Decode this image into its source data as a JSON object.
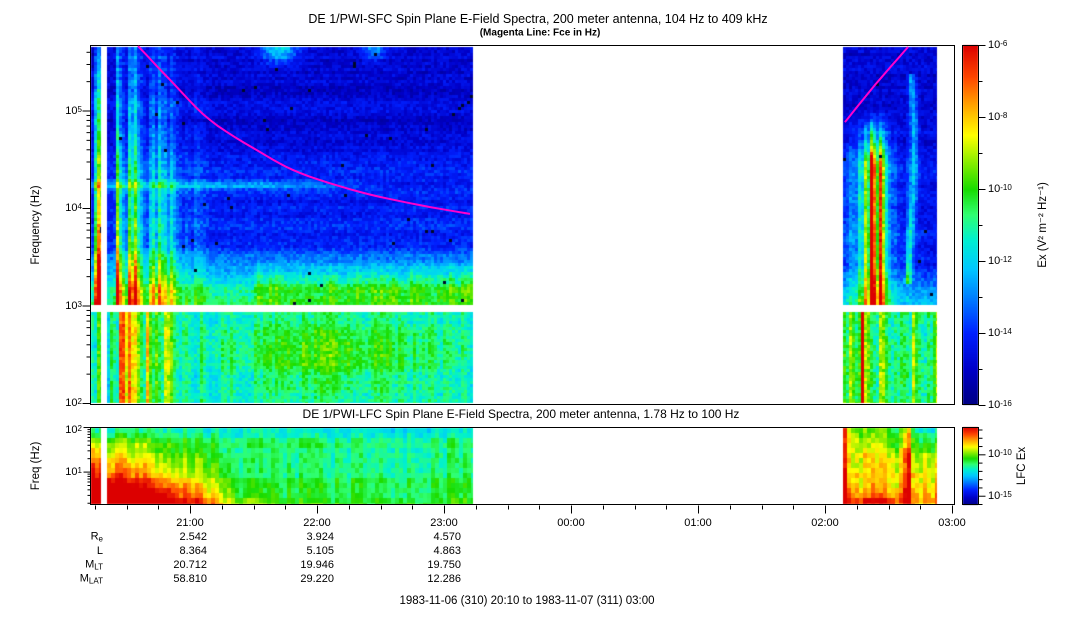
{
  "header": {
    "title": "DE 1/PWI-SFC  Spin Plane E-Field Spectra, 200 meter antenna, 104 Hz to 409 kHz",
    "subtitle": "(Magenta Line: Fce in Hz)"
  },
  "sfc_plot": {
    "ylabel": "Frequency (Hz)",
    "ytick_exps": [
      "2",
      "3",
      "4",
      "5"
    ],
    "freq_range_hz": [
      100,
      450000
    ]
  },
  "lfc_plot": {
    "title": "DE 1/PWI-LFC  Spin Plane E-Field Spectra, 200 meter antenna, 1.78 Hz to 100 Hz",
    "ylabel": "Freq (Hz)",
    "ytick_exps": [
      "1",
      "2"
    ],
    "freq_range_hz": [
      1.78,
      100
    ]
  },
  "colorbar_sfc": {
    "label": "Ex (V² m⁻² Hz⁻¹)",
    "tick_exps": [
      "-6",
      "-8",
      "-10",
      "-12",
      "-14",
      "-16"
    ],
    "range_exp": [
      -6,
      -16
    ]
  },
  "colorbar_lfc": {
    "label": "LFC Ex",
    "tick_exps": [
      "-10",
      "-15"
    ],
    "range_exp": [
      -6.7,
      -16
    ]
  },
  "xaxis": {
    "ticks": [
      {
        "t": 21,
        "label": "21:00"
      },
      {
        "t": 22,
        "label": "22:00"
      },
      {
        "t": 23,
        "label": "23:00"
      },
      {
        "t": 24,
        "label": "00:00"
      },
      {
        "t": 25,
        "label": "01:00"
      },
      {
        "t": 26,
        "label": "02:00"
      },
      {
        "t": 27,
        "label": "03:00"
      }
    ],
    "minor_step_h": 0.25
  },
  "ephemeris": {
    "columns_t": [
      21,
      22,
      23
    ],
    "rows": [
      {
        "label": "R",
        "sub": "e",
        "values": [
          "2.542",
          "3.924",
          "4.570"
        ]
      },
      {
        "label": "L",
        "sub": "",
        "values": [
          "8.364",
          "5.105",
          "4.863"
        ]
      },
      {
        "label": "M",
        "sub": "LT",
        "values": [
          "20.712",
          "19.946",
          "19.750"
        ]
      },
      {
        "label": "M",
        "sub": "LAT",
        "values": [
          "58.810",
          "29.220",
          "12.286"
        ]
      }
    ]
  },
  "footer": {
    "text": "1983-11-06 (310) 20:10 to 1983-11-07 (311) 03:00"
  },
  "colors": {
    "magenta": "#FF00CC",
    "frame": "#000000",
    "background": "#FFFFFF",
    "speck": "#000828",
    "colormap": [
      [
        0.0,
        "#000082"
      ],
      [
        0.1,
        "#0000C8"
      ],
      [
        0.2,
        "#0020FF"
      ],
      [
        0.3,
        "#0080FF"
      ],
      [
        0.38,
        "#00C8FF"
      ],
      [
        0.46,
        "#00F0D0"
      ],
      [
        0.53,
        "#30FF70"
      ],
      [
        0.6,
        "#18DC00"
      ],
      [
        0.68,
        "#90EE00"
      ],
      [
        0.75,
        "#FFFF00"
      ],
      [
        0.83,
        "#FFA800"
      ],
      [
        0.91,
        "#FF4800"
      ],
      [
        1.0,
        "#DC0000"
      ]
    ]
  },
  "spectrogram": {
    "segments_t": [
      [
        20.22,
        20.299
      ],
      [
        20.346,
        23.228
      ],
      [
        26.142,
        26.882
      ]
    ],
    "sfc_upper_f": [
      1010,
      450000
    ],
    "sfc_lower_f": [
      100,
      855
    ],
    "lfc_f": [
      1.78,
      100
    ]
  },
  "chart_data": [
    {
      "type": "heatmap",
      "title": "DE 1/PWI-SFC  Spin Plane E-Field Spectra, 200 meter antenna, 104 Hz to 409 kHz",
      "xlabel": "UT (1983-11-06 20:10 to 1983-11-07 03:00)",
      "ylabel": "Frequency (Hz)",
      "y_scale": "log",
      "y_range_hz": [
        100,
        409000
      ],
      "x_tick_labels": [
        "21:00",
        "22:00",
        "23:00",
        "00:00",
        "01:00",
        "02:00",
        "03:00"
      ],
      "receiver_band_gap_hz": [
        855,
        1010
      ],
      "data_segments_ut": [
        [
          "20:13",
          "20:18"
        ],
        [
          "20:21",
          "23:14"
        ],
        [
          "02:09",
          "02:53"
        ]
      ],
      "data_gap_ut": [
        "23:14",
        "02:09"
      ],
      "colorbar": {
        "label": "Ex (V2 m-2 Hz-1)",
        "min": "1e-16",
        "max": "1e-6",
        "tick_labels": [
          "10-6",
          "10-8",
          "10-10",
          "10-12",
          "10-14",
          "10-16"
        ]
      },
      "overlay_line": {
        "name": "Fce (electron cyclotron frequency)",
        "color": "#FF00CC",
        "points_ut_hz": [
          [
            20.591,
            458000
          ],
          [
            20.843,
            206000
          ],
          [
            21.157,
            80000
          ],
          [
            21.551,
            37500
          ],
          [
            21.866,
            22900
          ],
          [
            22.339,
            14600
          ],
          [
            22.811,
            10700
          ],
          [
            23.205,
            8700
          ],
          [
            26.157,
            76000
          ],
          [
            26.394,
            183000
          ],
          [
            26.654,
            448000
          ]
        ]
      },
      "features": [
        "intense broadband green/cyan bursts 20:20-21:45 below ~30 kHz",
        "weak dark-blue background above 10 kHz with horizontal banding",
        "green hiss band near 1-3 kHz after 22:30",
        "cyan-green low band 100-900 Hz throughout data intervals",
        "second burst region 02:10-02:50 below ~50 kHz with narrow cyan arc near 02:40"
      ]
    },
    {
      "type": "heatmap",
      "title": "DE 1/PWI-LFC  Spin Plane E-Field Spectra, 200 meter antenna, 1.78 Hz to 100 Hz",
      "ylabel": "Freq (Hz)",
      "y_scale": "log",
      "y_range_hz": [
        1.78,
        100
      ],
      "data_segments_ut": [
        [
          "20:13",
          "20:18"
        ],
        [
          "20:21",
          "23:14"
        ],
        [
          "02:09",
          "02:53"
        ]
      ],
      "colorbar": {
        "label": "LFC Ex",
        "tick_labels": [
          "10-10",
          "10-15"
        ]
      },
      "features": [
        "very intense red/orange emission 20:20-21:50 at lowest frequencies",
        "yellow-green transition 21:50-22:30, mostly green/cyan afterwards",
        "renewed orange/red striated activity 02:10-02:50 with red spike near 02:40"
      ]
    },
    {
      "type": "table",
      "title": "orbit ephemeris vs UT",
      "columns": [
        "21:00",
        "22:00",
        "23:00"
      ],
      "rows": [
        {
          "name": "Re",
          "values": [
            2.542,
            3.924,
            4.57
          ]
        },
        {
          "name": "L",
          "values": [
            8.364,
            5.105,
            4.863
          ]
        },
        {
          "name": "MLT",
          "values": [
            20.712,
            19.946,
            19.75
          ]
        },
        {
          "name": "MLAT",
          "values": [
            58.81,
            29.22,
            12.286
          ]
        }
      ]
    }
  ]
}
